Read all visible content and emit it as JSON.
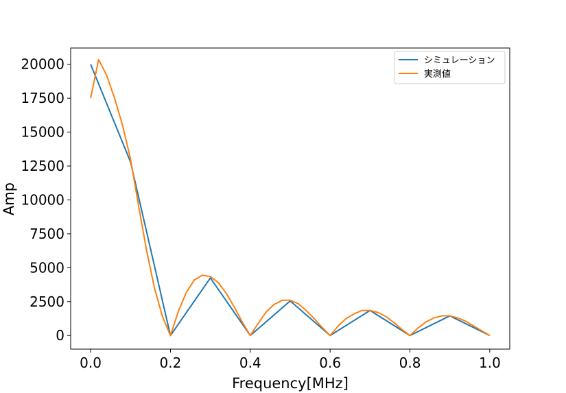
{
  "chart_data": {
    "type": "line",
    "xlabel": "Frequency[MHz]",
    "ylabel": "Amp",
    "xlim": [
      -0.05,
      1.05
    ],
    "ylim": [
      -1000,
      21200
    ],
    "xticks": [
      0.0,
      0.2,
      0.4,
      0.6,
      0.8,
      1.0
    ],
    "xtick_labels": [
      "0.0",
      "0.2",
      "0.4",
      "0.6",
      "0.8",
      "1.0"
    ],
    "yticks": [
      0,
      2500,
      5000,
      7500,
      10000,
      12500,
      15000,
      17500,
      20000
    ],
    "ytick_labels": [
      "0",
      "2500",
      "5000",
      "7500",
      "10000",
      "12500",
      "15000",
      "17500",
      "20000"
    ],
    "grid": false,
    "legend_position": "top-right",
    "series": [
      {
        "name": "シミュレーション",
        "color": "#1f77b4",
        "x": [
          0.0,
          0.1,
          0.2,
          0.3,
          0.4,
          0.5,
          0.6,
          0.7,
          0.8,
          0.9,
          1.0
        ],
        "y": [
          20000,
          12800,
          0,
          4250,
          0,
          2550,
          0,
          1850,
          0,
          1450,
          0
        ]
      },
      {
        "name": "実測値",
        "color": "#ff7f0e",
        "x": [
          0.0,
          0.02,
          0.04,
          0.06,
          0.08,
          0.1,
          0.12,
          0.14,
          0.16,
          0.18,
          0.2,
          0.22,
          0.24,
          0.26,
          0.28,
          0.3,
          0.32,
          0.34,
          0.36,
          0.38,
          0.4,
          0.42,
          0.44,
          0.46,
          0.48,
          0.5,
          0.52,
          0.54,
          0.56,
          0.58,
          0.6,
          0.62,
          0.64,
          0.66,
          0.68,
          0.7,
          0.72,
          0.74,
          0.76,
          0.78,
          0.8,
          0.82,
          0.84,
          0.86,
          0.88,
          0.9,
          0.92,
          0.94,
          0.96,
          0.98,
          1.0
        ],
        "y": [
          17500,
          20350,
          19200,
          17500,
          15500,
          13000,
          9600,
          6300,
          3500,
          1400,
          0,
          1800,
          3200,
          4100,
          4450,
          4350,
          3900,
          3100,
          2100,
          1000,
          0,
          900,
          1750,
          2300,
          2600,
          2600,
          2350,
          1850,
          1250,
          600,
          0,
          700,
          1250,
          1600,
          1850,
          1850,
          1700,
          1400,
          950,
          450,
          0,
          550,
          1000,
          1300,
          1450,
          1450,
          1300,
          1050,
          700,
          350,
          0
        ]
      }
    ]
  }
}
